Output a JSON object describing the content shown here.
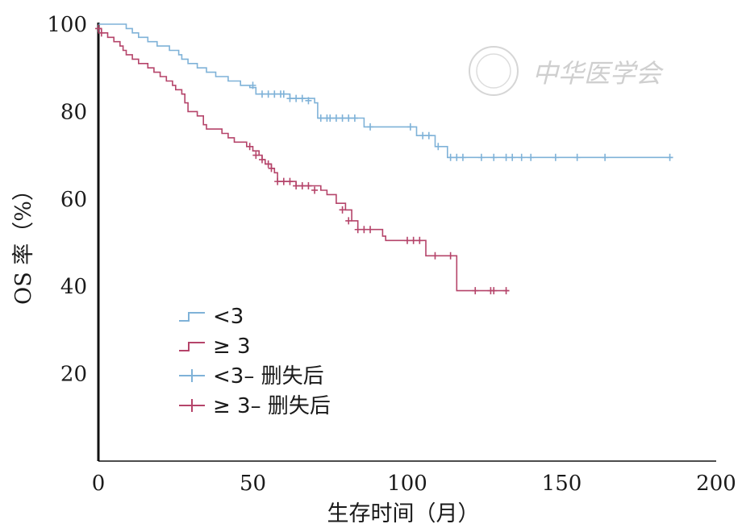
{
  "chart_data": {
    "type": "line",
    "title": "",
    "xlabel": "生存时间（月）",
    "ylabel": "OS 率（%）",
    "xlim": [
      0,
      200
    ],
    "ylim": [
      0,
      100
    ],
    "xticks": [
      "0",
      "50",
      "100",
      "150",
      "200"
    ],
    "yticks": [
      "20",
      "40",
      "60",
      "80",
      "100"
    ],
    "grid": false,
    "legend_position": "lower-left",
    "series": [
      {
        "name": "<3",
        "color": "#7fb2d8",
        "steps": [
          [
            0,
            100
          ],
          [
            7,
            100
          ],
          [
            9,
            99
          ],
          [
            11,
            98
          ],
          [
            13,
            97
          ],
          [
            16,
            96
          ],
          [
            19,
            95
          ],
          [
            23,
            94
          ],
          [
            26,
            93
          ],
          [
            27,
            92
          ],
          [
            29,
            91
          ],
          [
            32,
            90
          ],
          [
            35,
            89
          ],
          [
            38,
            88
          ],
          [
            42,
            87
          ],
          [
            46,
            86
          ],
          [
            49,
            85.5
          ],
          [
            51,
            84
          ],
          [
            55,
            84
          ],
          [
            60,
            84
          ],
          [
            62,
            83
          ],
          [
            70,
            82
          ],
          [
            71,
            78.5
          ],
          [
            84,
            78.5
          ],
          [
            86,
            76.5
          ],
          [
            102,
            76.5
          ],
          [
            103,
            74.5
          ],
          [
            108,
            74.5
          ],
          [
            109,
            72
          ],
          [
            112,
            72
          ],
          [
            113,
            69.5
          ],
          [
            186,
            69.5
          ]
        ],
        "censored": [
          [
            50,
            86
          ],
          [
            53,
            84
          ],
          [
            55,
            84
          ],
          [
            57,
            84
          ],
          [
            59,
            84
          ],
          [
            60,
            84
          ],
          [
            62,
            83
          ],
          [
            64,
            83
          ],
          [
            66,
            83
          ],
          [
            68,
            82.5
          ],
          [
            72,
            78.5
          ],
          [
            74,
            78.5
          ],
          [
            75,
            78.5
          ],
          [
            77,
            78.5
          ],
          [
            79,
            78.5
          ],
          [
            81,
            78.5
          ],
          [
            83,
            78.5
          ],
          [
            88,
            76.5
          ],
          [
            101,
            76.5
          ],
          [
            105,
            74.5
          ],
          [
            107,
            74.5
          ],
          [
            110,
            72
          ],
          [
            114,
            69.5
          ],
          [
            116,
            69.5
          ],
          [
            118,
            69.5
          ],
          [
            124,
            69.5
          ],
          [
            128,
            69.5
          ],
          [
            132,
            69.5
          ],
          [
            134,
            69.5
          ],
          [
            137,
            69.5
          ],
          [
            140,
            69.5
          ],
          [
            148,
            69.5
          ],
          [
            155,
            69.5
          ],
          [
            164,
            69.5
          ],
          [
            185,
            69.5
          ]
        ]
      },
      {
        "name": "≥ 3",
        "color": "#b5446a",
        "steps": [
          [
            0,
            99
          ],
          [
            1,
            98
          ],
          [
            3,
            97
          ],
          [
            5,
            96
          ],
          [
            7,
            95
          ],
          [
            8,
            94
          ],
          [
            9,
            93
          ],
          [
            11,
            92
          ],
          [
            13,
            91
          ],
          [
            16,
            90
          ],
          [
            18,
            89
          ],
          [
            20,
            88
          ],
          [
            22,
            87
          ],
          [
            24,
            86
          ],
          [
            25,
            85
          ],
          [
            27,
            84
          ],
          [
            28,
            82
          ],
          [
            29,
            80
          ],
          [
            32,
            79
          ],
          [
            34,
            77
          ],
          [
            35,
            76
          ],
          [
            40,
            75
          ],
          [
            42,
            74
          ],
          [
            44,
            73
          ],
          [
            48,
            72
          ],
          [
            50,
            71
          ],
          [
            52,
            70
          ],
          [
            53,
            69
          ],
          [
            54,
            68
          ],
          [
            56,
            67
          ],
          [
            57,
            66
          ],
          [
            58,
            64
          ],
          [
            63,
            64
          ],
          [
            64,
            63
          ],
          [
            72,
            62
          ],
          [
            74,
            61
          ],
          [
            77,
            59
          ],
          [
            80,
            57.5
          ],
          [
            82,
            55
          ],
          [
            84,
            53
          ],
          [
            92,
            51.5
          ],
          [
            93,
            50.5
          ],
          [
            105,
            50.5
          ],
          [
            106,
            47
          ],
          [
            115,
            47
          ],
          [
            116,
            39
          ],
          [
            133,
            39
          ]
        ],
        "censored": [
          [
            0,
            99
          ],
          [
            1,
            98
          ],
          [
            49,
            72
          ],
          [
            51,
            70
          ],
          [
            53,
            69
          ],
          [
            55,
            68
          ],
          [
            56,
            67
          ],
          [
            58,
            64
          ],
          [
            60,
            64
          ],
          [
            62,
            64
          ],
          [
            64,
            63
          ],
          [
            66,
            63
          ],
          [
            68,
            63
          ],
          [
            70,
            62
          ],
          [
            79,
            57.5
          ],
          [
            81,
            55
          ],
          [
            84,
            53
          ],
          [
            86,
            53
          ],
          [
            88,
            53
          ],
          [
            100,
            50.5
          ],
          [
            102,
            50.5
          ],
          [
            104,
            50.5
          ],
          [
            109,
            47
          ],
          [
            114,
            47
          ],
          [
            122,
            39
          ],
          [
            127,
            39
          ],
          [
            128,
            39
          ],
          [
            132,
            39
          ]
        ]
      }
    ],
    "legend": [
      {
        "label": "<3",
        "kind": "step",
        "color": "#7fb2d8"
      },
      {
        "label": "≥ 3",
        "kind": "step",
        "color": "#b5446a"
      },
      {
        "label": "<3– 删失后",
        "kind": "censor",
        "color": "#7fb2d8"
      },
      {
        "label": "≥ 3– 删失后",
        "kind": "censor",
        "color": "#b5446a"
      }
    ]
  },
  "watermark": {
    "text": "中华医学会"
  }
}
